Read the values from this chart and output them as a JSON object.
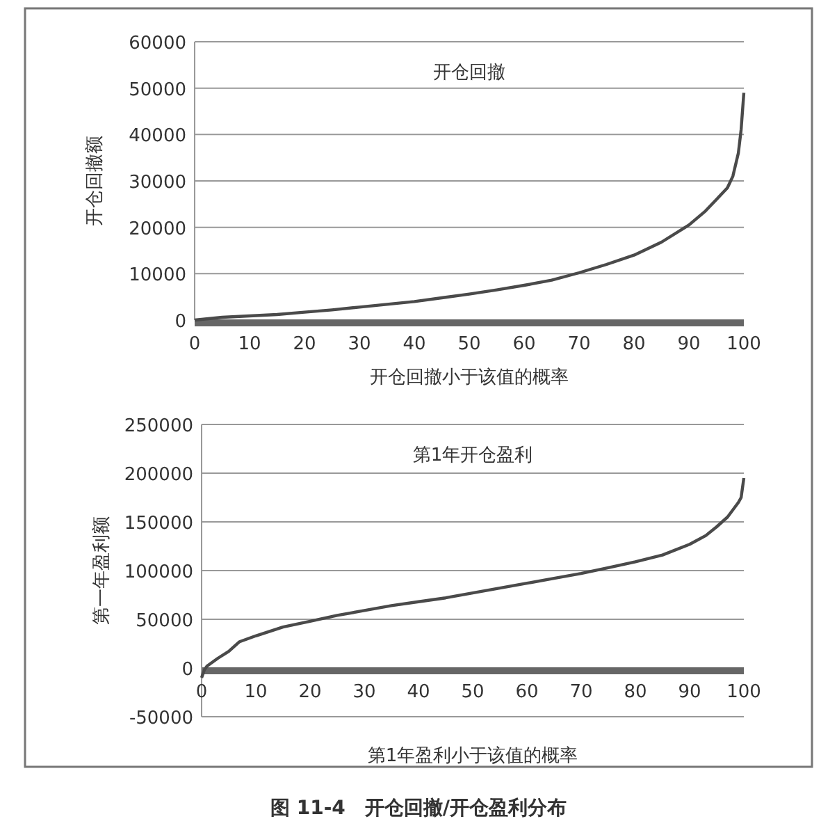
{
  "chart_data": [
    {
      "type": "line",
      "title": "开仓回撤",
      "xlabel": "开仓回撤小于该值的概率",
      "ylabel": "开仓回撤额",
      "xlim": [
        0,
        100
      ],
      "xticks": [
        0,
        10,
        20,
        30,
        40,
        50,
        60,
        70,
        80,
        90,
        100
      ],
      "ylim": [
        0,
        60000
      ],
      "yticks": [
        0,
        10000,
        20000,
        30000,
        40000,
        50000,
        60000
      ],
      "grid": "y",
      "series": [
        {
          "color": "#4a4a4a",
          "x": [
            0,
            5,
            10,
            15,
            20,
            25,
            30,
            35,
            40,
            45,
            50,
            55,
            60,
            65,
            70,
            75,
            80,
            85,
            90,
            93,
            95,
            97,
            98,
            99,
            99.5,
            100
          ],
          "values": [
            0,
            600,
            900,
            1200,
            1700,
            2200,
            2800,
            3400,
            4000,
            4800,
            5600,
            6500,
            7500,
            8600,
            10200,
            12000,
            14000,
            16800,
            20500,
            23500,
            26000,
            28500,
            31000,
            36000,
            41000,
            49000
          ]
        }
      ]
    },
    {
      "type": "line",
      "title": "第1年开仓盈利",
      "xlabel": "第1年盈利小于该值的概率",
      "ylabel": "第一年盈利额",
      "xlim": [
        0,
        100
      ],
      "xticks": [
        0,
        10,
        20,
        30,
        40,
        50,
        60,
        70,
        80,
        90,
        100
      ],
      "ylim": [
        -50000,
        250000
      ],
      "yticks": [
        -50000,
        0,
        50000,
        100000,
        150000,
        200000,
        250000
      ],
      "grid": "y",
      "annotations": [
        "图 11-4　开仓回撤/开仓盈利分布"
      ],
      "series": [
        {
          "color": "#4a4a4a",
          "x": [
            0,
            0.5,
            1,
            3,
            5,
            7,
            10,
            15,
            20,
            25,
            30,
            35,
            40,
            45,
            50,
            55,
            60,
            65,
            70,
            75,
            80,
            85,
            90,
            93,
            95,
            97,
            99,
            99.5,
            100
          ],
          "values": [
            -10000,
            -2000,
            2000,
            10000,
            17000,
            27000,
            33000,
            42000,
            48000,
            54000,
            59000,
            64000,
            68000,
            72000,
            77000,
            82000,
            87000,
            92000,
            97000,
            103000,
            109000,
            116000,
            127000,
            136000,
            145000,
            155000,
            170000,
            175000,
            195000
          ]
        }
      ]
    }
  ]
}
